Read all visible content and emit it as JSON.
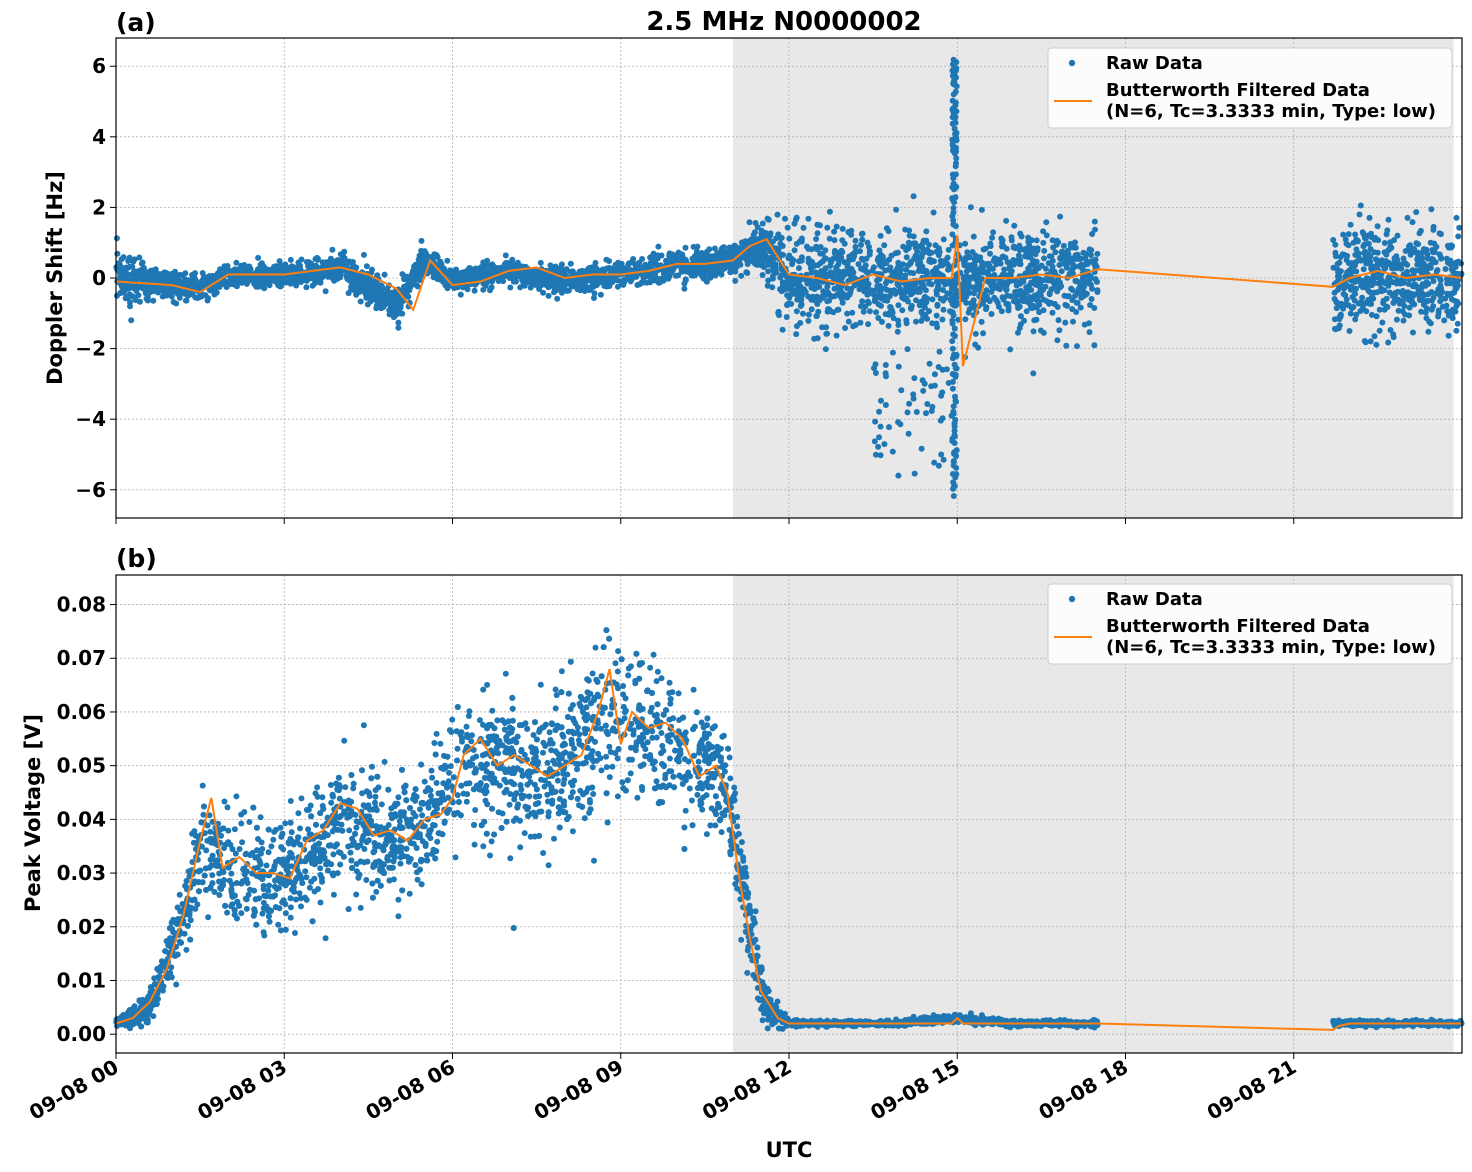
{
  "figure": {
    "title": "2.5 MHz N0000002",
    "xlabel": "UTC",
    "x_tick_labels": [
      "09-08 00",
      "09-08 03",
      "09-08 06",
      "09-08 09",
      "09-08 12",
      "09-08 15",
      "09-08 18",
      "09-08 21"
    ]
  },
  "colors": {
    "raw": "#1f77b4",
    "filtered": "#ff7f0e",
    "shade": "#e8e8e8",
    "grid": "#b0b0b0"
  },
  "chart_data": [
    {
      "type": "scatter",
      "panel_label": "(a)",
      "ylabel": "Doppler Shift [Hz]",
      "xlim": [
        0,
        24
      ],
      "ylim": [
        -6.8,
        6.8
      ],
      "x_ticks": [
        0,
        3,
        6,
        9,
        12,
        15,
        18,
        21
      ],
      "y_ticks": [
        6,
        4,
        2,
        0,
        -2,
        -4,
        -6
      ],
      "y_tick_labels": [
        "6",
        "4",
        "2",
        "0",
        "−2",
        "−4",
        "−6"
      ],
      "shaded_region": [
        11,
        23.85
      ],
      "gap": [
        17.5,
        21.7
      ],
      "legend": {
        "position": "upper right",
        "entries": [
          {
            "label": "Raw Data",
            "marker": "dot"
          },
          {
            "label": "Butterworth Filtered Data",
            "label2": "(N=6, Tc=3.3333 min, Type: low)",
            "marker": "line"
          }
        ]
      },
      "series": [
        {
          "name": "Raw Data",
          "style": "points",
          "x": [
            0,
            0.5,
            1,
            1.5,
            2,
            3,
            4,
            5,
            5.5,
            6,
            7,
            8,
            9,
            10,
            11,
            11.5,
            12,
            13,
            14,
            15,
            16,
            17,
            17.5,
            21.7,
            22,
            23,
            24
          ],
          "y_center": [
            0,
            -0.1,
            -0.2,
            -0.3,
            0,
            0.1,
            0.3,
            -0.8,
            0.5,
            -0.1,
            0.2,
            -0.1,
            0.1,
            0.3,
            0.5,
            1.0,
            0,
            0,
            -0.1,
            0,
            0,
            0,
            0.1,
            -0.3,
            0,
            0,
            0
          ],
          "y_spread": [
            1.0,
            0.6,
            0.4,
            0.4,
            0.4,
            0.4,
            0.5,
            0.6,
            0.5,
            0.4,
            0.4,
            0.4,
            0.4,
            0.5,
            0.5,
            0.8,
            1.6,
            1.6,
            1.6,
            1.6,
            1.6,
            1.6,
            1.6,
            1.7,
            1.7,
            1.7,
            1.7
          ]
        },
        {
          "name": "Butterworth Filtered Data",
          "style": "line",
          "x": [
            0,
            0.5,
            1,
            1.5,
            2,
            2.5,
            3,
            3.5,
            4,
            4.5,
            5,
            5.3,
            5.6,
            6,
            6.5,
            7,
            7.5,
            8,
            8.5,
            9,
            9.5,
            10,
            10.5,
            11,
            11.3,
            11.6,
            12,
            12.5,
            13,
            13.5,
            14,
            14.5,
            14.9,
            15,
            15.1,
            15.5,
            16,
            16.5,
            17,
            17.5,
            21.7,
            22,
            22.5,
            23,
            23.5,
            24
          ],
          "y": [
            -0.1,
            -0.15,
            -0.2,
            -0.4,
            0.1,
            0.1,
            0.1,
            0.2,
            0.3,
            0.1,
            -0.3,
            -0.9,
            0.5,
            -0.2,
            -0.1,
            0.2,
            0.3,
            0,
            0.1,
            0.1,
            0.2,
            0.4,
            0.4,
            0.5,
            0.9,
            1.1,
            0.1,
            0,
            -0.2,
            0.1,
            -0.1,
            0,
            0,
            1.2,
            -2.5,
            0,
            0,
            0.1,
            0,
            0.25,
            -0.25,
            0,
            0.2,
            0,
            0.1,
            0
          ]
        }
      ]
    },
    {
      "type": "scatter",
      "panel_label": "(b)",
      "ylabel": "Peak Voltage [V]",
      "xlim": [
        0,
        24
      ],
      "ylim": [
        -0.0035,
        0.0855
      ],
      "x_ticks": [
        0,
        3,
        6,
        9,
        12,
        15,
        18,
        21
      ],
      "y_ticks": [
        0.08,
        0.07,
        0.06,
        0.05,
        0.04,
        0.03,
        0.02,
        0.01,
        0.0
      ],
      "y_tick_labels": [
        "0.08",
        "0.07",
        "0.06",
        "0.05",
        "0.04",
        "0.03",
        "0.02",
        "0.01",
        "0.00"
      ],
      "shaded_region": [
        11,
        23.85
      ],
      "gap": [
        17.5,
        21.7
      ],
      "legend": {
        "position": "upper right",
        "entries": [
          {
            "label": "Raw Data",
            "marker": "dot"
          },
          {
            "label": "Butterworth Filtered Data",
            "label2": "(N=6, Tc=3.3333 min, Type: low)",
            "marker": "line"
          }
        ]
      },
      "series": [
        {
          "name": "Raw Data",
          "style": "points",
          "x": [
            0,
            0.5,
            0.8,
            1.2,
            1.5,
            2,
            2.5,
            3,
            3.5,
            4,
            4.5,
            5,
            5.5,
            6,
            6.5,
            7,
            7.5,
            8,
            8.5,
            9,
            9.5,
            10,
            10.5,
            10.9,
            11.3,
            11.6,
            12,
            13,
            14,
            15,
            16,
            17,
            17.5,
            21.7,
            22,
            23,
            24
          ],
          "y_center": [
            0.002,
            0.004,
            0.01,
            0.022,
            0.034,
            0.03,
            0.03,
            0.03,
            0.034,
            0.04,
            0.037,
            0.036,
            0.04,
            0.048,
            0.05,
            0.05,
            0.05,
            0.05,
            0.055,
            0.058,
            0.056,
            0.052,
            0.05,
            0.045,
            0.02,
            0.005,
            0.002,
            0.002,
            0.002,
            0.003,
            0.002,
            0.002,
            0.002,
            0.002,
            0.002,
            0.002,
            0.002
          ],
          "y_spread": [
            0.001,
            0.003,
            0.005,
            0.008,
            0.012,
            0.014,
            0.013,
            0.013,
            0.014,
            0.015,
            0.013,
            0.012,
            0.013,
            0.015,
            0.015,
            0.015,
            0.015,
            0.015,
            0.016,
            0.016,
            0.015,
            0.014,
            0.012,
            0.012,
            0.012,
            0.004,
            0.0006,
            0.0006,
            0.0006,
            0.001,
            0.0006,
            0.0006,
            0.0006,
            0.0006,
            0.0006,
            0.0006,
            0.0006
          ]
        },
        {
          "name": "Butterworth Filtered Data",
          "style": "line",
          "x": [
            0,
            0.3,
            0.6,
            0.9,
            1.2,
            1.5,
            1.7,
            1.9,
            2.2,
            2.5,
            2.8,
            3.1,
            3.4,
            3.7,
            4,
            4.3,
            4.6,
            4.9,
            5.2,
            5.5,
            5.8,
            6,
            6.2,
            6.5,
            6.8,
            7.1,
            7.4,
            7.7,
            8,
            8.3,
            8.6,
            8.8,
            9,
            9.2,
            9.5,
            9.8,
            10.1,
            10.4,
            10.7,
            10.9,
            11.1,
            11.3,
            11.5,
            11.8,
            12,
            13,
            14,
            14.9,
            15,
            15.1,
            16,
            17,
            17.5,
            21.7,
            21.8,
            22,
            23,
            24
          ],
          "y": [
            0.002,
            0.003,
            0.006,
            0.012,
            0.022,
            0.036,
            0.044,
            0.031,
            0.033,
            0.03,
            0.03,
            0.029,
            0.036,
            0.038,
            0.043,
            0.042,
            0.037,
            0.038,
            0.036,
            0.04,
            0.041,
            0.044,
            0.052,
            0.055,
            0.05,
            0.052,
            0.05,
            0.048,
            0.05,
            0.052,
            0.06,
            0.068,
            0.054,
            0.06,
            0.057,
            0.058,
            0.055,
            0.048,
            0.05,
            0.045,
            0.03,
            0.018,
            0.008,
            0.003,
            0.002,
            0.002,
            0.002,
            0.002,
            0.003,
            0.002,
            0.002,
            0.002,
            0.002,
            0.0008,
            0.0015,
            0.002,
            0.002,
            0.002
          ]
        }
      ]
    }
  ]
}
